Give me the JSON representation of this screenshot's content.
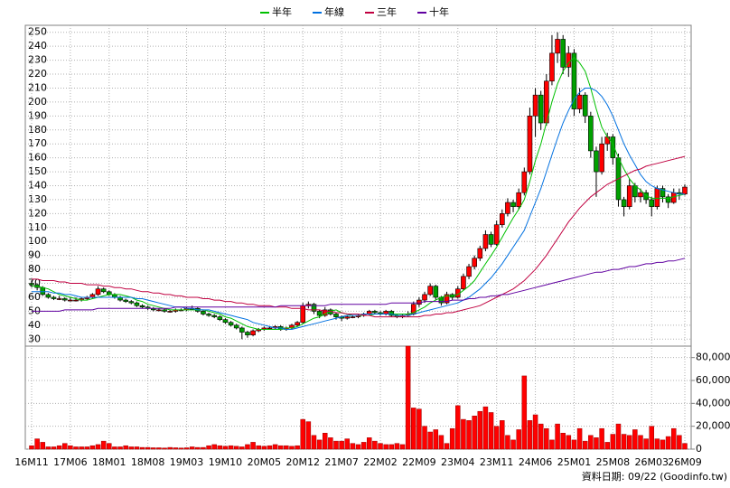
{
  "chart_data": {
    "type": "candlestick",
    "footer": "資料日期: 09/22 (Goodinfo.tw)",
    "up_color": "#ff0000",
    "down_color": "#00a000",
    "volume_color": "#ff0000",
    "grid": true,
    "legend": "top",
    "categories": [
      "16M11",
      null,
      null,
      null,
      null,
      null,
      null,
      "17M06",
      null,
      null,
      null,
      null,
      null,
      null,
      "18M01",
      null,
      null,
      null,
      null,
      null,
      null,
      "18M08",
      null,
      null,
      null,
      null,
      null,
      null,
      "19M03",
      null,
      null,
      null,
      null,
      null,
      null,
      "19M10",
      null,
      null,
      null,
      null,
      null,
      null,
      "20M05",
      null,
      null,
      null,
      null,
      null,
      null,
      "20M12",
      null,
      null,
      null,
      null,
      null,
      null,
      "21M07",
      null,
      null,
      null,
      null,
      null,
      null,
      "22M02",
      null,
      null,
      null,
      null,
      null,
      null,
      "22M09",
      null,
      null,
      null,
      null,
      null,
      null,
      "23M04",
      null,
      null,
      null,
      null,
      null,
      null,
      "23M11",
      null,
      null,
      null,
      null,
      null,
      null,
      "24M06",
      null,
      null,
      null,
      null,
      null,
      null,
      "25M01",
      null,
      null,
      null,
      null,
      null,
      null,
      "25M08",
      null,
      null,
      null,
      null,
      null,
      null,
      "26M03",
      null,
      null,
      null,
      null,
      null,
      "26M09"
    ],
    "ylim": [
      25,
      255
    ],
    "yticks": [
      30,
      40,
      50,
      60,
      70,
      80,
      90,
      100,
      110,
      120,
      130,
      140,
      150,
      160,
      170,
      180,
      190,
      200,
      210,
      220,
      230,
      240,
      250
    ],
    "y2lim": [
      0,
      90000
    ],
    "y2ticks": [
      0,
      {
        "value": 20000,
        "label": "20,000"
      },
      {
        "value": 40000,
        "label": "40,000"
      },
      {
        "value": 60000,
        "label": "60,000"
      },
      {
        "value": 80000,
        "label": "80,000"
      }
    ],
    "candles": [
      [
        70,
        72,
        67,
        69
      ],
      [
        69,
        70,
        65,
        67
      ],
      [
        67,
        68,
        61,
        62
      ],
      [
        62,
        63,
        59,
        60
      ],
      [
        60,
        61,
        58,
        59
      ],
      [
        59,
        61,
        58,
        59
      ],
      [
        59,
        60,
        57,
        58
      ],
      [
        58,
        60,
        57,
        58
      ],
      [
        58,
        60,
        57,
        58
      ],
      [
        58,
        60,
        57,
        59
      ],
      [
        59,
        61,
        58,
        60
      ],
      [
        60,
        63,
        59,
        62
      ],
      [
        62,
        68,
        61,
        66
      ],
      [
        66,
        67,
        63,
        64
      ],
      [
        64,
        65,
        61,
        62
      ],
      [
        62,
        63,
        59,
        60
      ],
      [
        60,
        61,
        57,
        58
      ],
      [
        58,
        59,
        56,
        57
      ],
      [
        57,
        58,
        55,
        56
      ],
      [
        56,
        57,
        53,
        54
      ],
      [
        54,
        55,
        52,
        53
      ],
      [
        53,
        54,
        51,
        52
      ],
      [
        52,
        53,
        50,
        51
      ],
      [
        51,
        52,
        50,
        51
      ],
      [
        51,
        52,
        49,
        50
      ],
      [
        50,
        51,
        49,
        50
      ],
      [
        50,
        52,
        49,
        51
      ],
      [
        51,
        52,
        50,
        51
      ],
      [
        51,
        53,
        50,
        52
      ],
      [
        52,
        54,
        51,
        52
      ],
      [
        52,
        53,
        49,
        50
      ],
      [
        50,
        51,
        47,
        48
      ],
      [
        48,
        49,
        46,
        47
      ],
      [
        47,
        48,
        45,
        46
      ],
      [
        46,
        47,
        43,
        44
      ],
      [
        44,
        45,
        41,
        42
      ],
      [
        42,
        43,
        39,
        40
      ],
      [
        40,
        41,
        37,
        38
      ],
      [
        38,
        39,
        30,
        35
      ],
      [
        35,
        36,
        31,
        33
      ],
      [
        33,
        37,
        32,
        36
      ],
      [
        36,
        38,
        35,
        37
      ],
      [
        37,
        39,
        36,
        38
      ],
      [
        38,
        39,
        37,
        38
      ],
      [
        38,
        40,
        37,
        39
      ],
      [
        39,
        40,
        36,
        37
      ],
      [
        37,
        39,
        36,
        38
      ],
      [
        38,
        41,
        37,
        40
      ],
      [
        40,
        43,
        39,
        42
      ],
      [
        42,
        56,
        41,
        54
      ],
      [
        54,
        57,
        52,
        55
      ],
      [
        55,
        56,
        48,
        50
      ],
      [
        50,
        51,
        45,
        47
      ],
      [
        47,
        53,
        46,
        51
      ],
      [
        51,
        52,
        47,
        48
      ],
      [
        48,
        49,
        44,
        46
      ],
      [
        46,
        47,
        43,
        45
      ],
      [
        45,
        47,
        44,
        46
      ],
      [
        46,
        47,
        45,
        46
      ],
      [
        46,
        48,
        45,
        47
      ],
      [
        47,
        49,
        46,
        48
      ],
      [
        48,
        51,
        47,
        50
      ],
      [
        50,
        51,
        48,
        49
      ],
      [
        49,
        50,
        47,
        48
      ],
      [
        48,
        51,
        47,
        50
      ],
      [
        50,
        51,
        46,
        47
      ],
      [
        47,
        48,
        45,
        46
      ],
      [
        46,
        48,
        45,
        47
      ],
      [
        47,
        50,
        46,
        48
      ],
      [
        48,
        57,
        47,
        55
      ],
      [
        55,
        60,
        53,
        58
      ],
      [
        58,
        64,
        56,
        62
      ],
      [
        62,
        70,
        61,
        68
      ],
      [
        68,
        69,
        58,
        60
      ],
      [
        60,
        61,
        54,
        56
      ],
      [
        56,
        64,
        55,
        62
      ],
      [
        62,
        63,
        58,
        60
      ],
      [
        60,
        68,
        59,
        66
      ],
      [
        66,
        77,
        65,
        75
      ],
      [
        75,
        84,
        73,
        82
      ],
      [
        82,
        90,
        80,
        88
      ],
      [
        88,
        97,
        86,
        95
      ],
      [
        95,
        108,
        93,
        105
      ],
      [
        105,
        107,
        96,
        98
      ],
      [
        98,
        115,
        97,
        112
      ],
      [
        112,
        123,
        110,
        120
      ],
      [
        120,
        131,
        118,
        128
      ],
      [
        128,
        130,
        121,
        125
      ],
      [
        125,
        138,
        123,
        135
      ],
      [
        135,
        153,
        133,
        150
      ],
      [
        150,
        196,
        148,
        190
      ],
      [
        190,
        210,
        175,
        205
      ],
      [
        205,
        208,
        180,
        185
      ],
      [
        185,
        220,
        183,
        215
      ],
      [
        215,
        248,
        212,
        235
      ],
      [
        235,
        250,
        228,
        245
      ],
      [
        245,
        248,
        220,
        225
      ],
      [
        225,
        240,
        218,
        235
      ],
      [
        235,
        238,
        190,
        195
      ],
      [
        195,
        210,
        192,
        205
      ],
      [
        205,
        207,
        185,
        190
      ],
      [
        190,
        193,
        160,
        165
      ],
      [
        165,
        168,
        132,
        150
      ],
      [
        150,
        175,
        148,
        170
      ],
      [
        170,
        178,
        165,
        175
      ],
      [
        175,
        177,
        155,
        160
      ],
      [
        160,
        163,
        125,
        130
      ],
      [
        130,
        132,
        118,
        125
      ],
      [
        125,
        145,
        123,
        140
      ],
      [
        140,
        142,
        128,
        132
      ],
      [
        132,
        138,
        128,
        135
      ],
      [
        135,
        137,
        127,
        130
      ],
      [
        130,
        132,
        118,
        125
      ],
      [
        125,
        140,
        123,
        138
      ],
      [
        138,
        140,
        128,
        132
      ],
      [
        132,
        134,
        124,
        128
      ],
      [
        128,
        138,
        127,
        135
      ],
      [
        135,
        138,
        130,
        134
      ],
      [
        134,
        141,
        133,
        139
      ]
    ],
    "volume": [
      3000,
      9000,
      6000,
      2000,
      2000,
      3000,
      5000,
      3000,
      2000,
      2000,
      2000,
      3000,
      4000,
      7000,
      5000,
      2000,
      2000,
      3000,
      2000,
      2000,
      1500,
      1500,
      1200,
      1200,
      1000,
      1500,
      1200,
      1000,
      1200,
      2000,
      1500,
      1500,
      3000,
      4000,
      3000,
      2500,
      3000,
      2500,
      2000,
      4000,
      6000,
      3000,
      2500,
      3000,
      4000,
      3000,
      3000,
      2500,
      3000,
      26000,
      24000,
      12000,
      8000,
      14000,
      10000,
      7000,
      7000,
      9000,
      5000,
      4000,
      6000,
      10000,
      7000,
      5000,
      4000,
      4000,
      5000,
      4000,
      90000,
      36000,
      35000,
      20000,
      15000,
      17000,
      12000,
      5000,
      18000,
      38000,
      26000,
      25000,
      29000,
      33000,
      37000,
      32000,
      20000,
      25000,
      12000,
      8000,
      17000,
      64000,
      25000,
      30000,
      22000,
      18000,
      8000,
      22000,
      14000,
      12000,
      8000,
      18000,
      7000,
      12000,
      10000,
      18000,
      6000,
      13000,
      22000,
      13000,
      12000,
      17000,
      12000,
      9000,
      20000,
      9000,
      8000,
      11000,
      18000,
      12000,
      5000
    ],
    "series": [
      {
        "name": "半年",
        "color": "#00c000",
        "values": [
          68,
          68,
          67,
          66,
          64,
          62,
          61,
          60,
          59,
          58,
          58,
          59,
          60,
          61,
          62,
          62,
          62,
          61,
          60,
          58,
          57,
          55,
          54,
          53,
          52,
          51,
          51,
          51,
          51,
          51,
          51,
          51,
          50,
          49,
          48,
          46,
          45,
          43,
          41,
          39,
          38,
          37,
          37,
          37,
          37,
          37,
          38,
          38,
          39,
          41,
          43,
          45,
          46,
          48,
          50,
          51,
          49,
          48,
          47,
          47,
          47,
          47,
          48,
          48,
          48,
          48,
          48,
          48,
          48,
          49,
          51,
          53,
          56,
          58,
          60,
          61,
          61,
          62,
          65,
          68,
          72,
          78,
          84,
          90,
          96,
          103,
          110,
          117,
          123,
          130,
          143,
          158,
          170,
          185,
          200,
          213,
          222,
          228,
          232,
          228,
          222,
          210,
          195,
          182,
          175,
          170,
          160,
          152,
          145,
          140,
          137,
          133,
          131,
          131,
          131,
          131,
          132,
          133,
          134
        ]
      },
      {
        "name": "年線",
        "color": "#0070e0",
        "values": [
          64,
          64,
          64,
          64,
          63,
          63,
          62,
          62,
          61,
          60,
          60,
          60,
          60,
          60,
          60,
          60,
          60,
          60,
          60,
          59,
          59,
          58,
          57,
          56,
          55,
          54,
          53,
          53,
          52,
          52,
          51,
          51,
          51,
          50,
          49,
          48,
          47,
          46,
          45,
          44,
          42,
          41,
          40,
          39,
          38,
          38,
          37,
          37,
          38,
          39,
          40,
          41,
          42,
          43,
          44,
          45,
          46,
          47,
          47,
          47,
          48,
          48,
          48,
          48,
          48,
          48,
          47,
          47,
          47,
          48,
          49,
          50,
          51,
          52,
          53,
          54,
          55,
          56,
          58,
          60,
          63,
          66,
          70,
          74,
          79,
          84,
          90,
          96,
          102,
          108,
          118,
          128,
          138,
          150,
          162,
          174,
          185,
          194,
          202,
          207,
          210,
          210,
          208,
          204,
          198,
          190,
          180,
          170,
          162,
          155,
          148,
          143,
          140,
          138,
          137,
          136,
          135,
          134,
          134
        ]
      },
      {
        "name": "三年",
        "color": "#c00040",
        "values": [
          73,
          73,
          72,
          72,
          72,
          71,
          71,
          70,
          70,
          70,
          69,
          69,
          69,
          68,
          68,
          67,
          67,
          66,
          66,
          65,
          64,
          64,
          63,
          63,
          62,
          62,
          61,
          61,
          60,
          60,
          60,
          59,
          59,
          58,
          58,
          57,
          57,
          56,
          56,
          55,
          55,
          54,
          54,
          54,
          53,
          53,
          53,
          52,
          52,
          52,
          51,
          51,
          51,
          50,
          50,
          49,
          49,
          48,
          48,
          48,
          47,
          47,
          46,
          46,
          46,
          46,
          46,
          46,
          46,
          46,
          46,
          47,
          47,
          48,
          48,
          49,
          49,
          50,
          51,
          52,
          53,
          54,
          56,
          58,
          60,
          62,
          64,
          66,
          69,
          72,
          76,
          80,
          85,
          90,
          96,
          102,
          108,
          114,
          119,
          124,
          128,
          132,
          135,
          138,
          141,
          143,
          145,
          147,
          149,
          151,
          152,
          154,
          155,
          156,
          157,
          158,
          159,
          160,
          161
        ]
      },
      {
        "name": "十年",
        "color": "#6000a0",
        "values": [
          50,
          50,
          50,
          50,
          50,
          50,
          51,
          51,
          51,
          51,
          51,
          51,
          52,
          52,
          52,
          52,
          52,
          52,
          52,
          52,
          52,
          52,
          52,
          52,
          52,
          52,
          53,
          53,
          53,
          53,
          53,
          53,
          53,
          53,
          53,
          53,
          53,
          53,
          53,
          53,
          53,
          53,
          53,
          53,
          53,
          54,
          54,
          54,
          54,
          54,
          54,
          54,
          54,
          54,
          55,
          55,
          55,
          55,
          55,
          55,
          55,
          55,
          55,
          55,
          55,
          56,
          56,
          56,
          56,
          56,
          56,
          57,
          57,
          57,
          57,
          57,
          58,
          58,
          58,
          59,
          59,
          60,
          60,
          61,
          61,
          62,
          62,
          63,
          64,
          65,
          66,
          67,
          68,
          69,
          70,
          71,
          72,
          73,
          74,
          75,
          76,
          77,
          78,
          78,
          79,
          80,
          80,
          81,
          82,
          82,
          83,
          84,
          84,
          85,
          85,
          86,
          86,
          87,
          88
        ]
      }
    ]
  }
}
